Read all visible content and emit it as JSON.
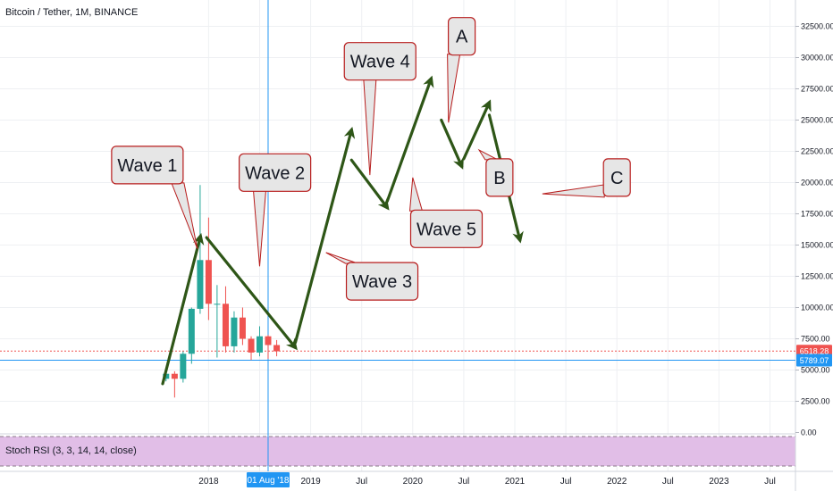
{
  "header": {
    "title": "Bitcoin / Tether, 1M, BINANCE"
  },
  "indicator": {
    "label": "Stoch RSI (3, 3, 14, 14, close)"
  },
  "colors": {
    "up": "#26a69a",
    "down": "#ef5350",
    "arrow": "#2e5617",
    "crosshair": "#2196f3",
    "price_tag": "#ef5350",
    "cross_tag": "#2196f3",
    "rsi_band": "#e1bee7",
    "box_fill": "#e6e6e6",
    "box_border": "#b71c1c"
  },
  "chart_data": {
    "type": "candlestick",
    "title": "Bitcoin / Tether, 1M, BINANCE",
    "ylim": [
      0,
      34500
    ],
    "y_ticks": [
      0,
      2500,
      5000,
      7500,
      10000,
      12500,
      15000,
      17500,
      20000,
      22500,
      25000,
      27500,
      30000,
      32500
    ],
    "y_tick_labels": [
      "0.00",
      "2500.00",
      "5000.00",
      "7500.00",
      "10000.00",
      "12500.00",
      "15000.00",
      "17500.00",
      "20000.00",
      "22500.00",
      "25000.00",
      "27500.00",
      "30000.00",
      "32500.00"
    ],
    "x_ticks": [
      {
        "label": "2018",
        "t": 2018.0
      },
      {
        "label": "Jul",
        "t": 2018.5
      },
      {
        "label": "2019",
        "t": 2019.0
      },
      {
        "label": "Jul",
        "t": 2019.5
      },
      {
        "label": "2020",
        "t": 2020.0
      },
      {
        "label": "Jul",
        "t": 2020.5
      },
      {
        "label": "2021",
        "t": 2021.0
      },
      {
        "label": "Jul",
        "t": 2021.5
      },
      {
        "label": "2022",
        "t": 2022.0
      },
      {
        "label": "Jul",
        "t": 2022.5
      },
      {
        "label": "2023",
        "t": 2023.0
      },
      {
        "label": "Jul",
        "t": 2023.5
      }
    ],
    "x_range": [
      2016.0,
      2023.97
    ],
    "candles": [
      {
        "t": 2017.583,
        "o": 4300,
        "h": 4800,
        "l": 4100,
        "c": 4700
      },
      {
        "t": 2017.667,
        "o": 4700,
        "h": 4900,
        "l": 2800,
        "c": 4300
      },
      {
        "t": 2017.75,
        "o": 4300,
        "h": 6500,
        "l": 4000,
        "c": 6300
      },
      {
        "t": 2017.833,
        "o": 6300,
        "h": 10000,
        "l": 5500,
        "c": 9900
      },
      {
        "t": 2017.917,
        "o": 9900,
        "h": 19800,
        "l": 9500,
        "c": 13800
      },
      {
        "t": 2018.0,
        "o": 13800,
        "h": 17200,
        "l": 9000,
        "c": 10300
      },
      {
        "t": 2018.083,
        "o": 10300,
        "h": 11800,
        "l": 6000,
        "c": 10300
      },
      {
        "t": 2018.167,
        "o": 10300,
        "h": 11700,
        "l": 6400,
        "c": 6900
      },
      {
        "t": 2018.25,
        "o": 6900,
        "h": 9700,
        "l": 6400,
        "c": 9200
      },
      {
        "t": 2018.333,
        "o": 9200,
        "h": 10000,
        "l": 7000,
        "c": 7500
      },
      {
        "t": 2018.417,
        "o": 7500,
        "h": 7700,
        "l": 5800,
        "c": 6400
      },
      {
        "t": 2018.5,
        "o": 6400,
        "h": 8500,
        "l": 6100,
        "c": 7700
      },
      {
        "t": 2018.583,
        "o": 7700,
        "h": 7800,
        "l": 5900,
        "c": 7000
      },
      {
        "t": 2018.667,
        "o": 7000,
        "h": 7400,
        "l": 6100,
        "c": 6500
      }
    ],
    "price_lines": [
      {
        "label": "6518.28",
        "value": 6518.28,
        "style": "dotted"
      },
      {
        "label": "5789.07",
        "value": 5789.07,
        "style": "solid"
      }
    ],
    "crosshair": {
      "label": "01 Aug '18",
      "t": 2018.583
    },
    "arrows": [
      [
        2017.55,
        3900,
        2017.92,
        15700
      ],
      [
        2017.98,
        15600,
        2018.85,
        6800
      ],
      [
        2018.85,
        7200,
        2019.4,
        24200
      ],
      [
        2019.4,
        21800,
        2019.75,
        18000
      ],
      [
        2019.75,
        18500,
        2020.18,
        28300
      ],
      [
        2020.28,
        25000,
        2020.48,
        21300
      ],
      [
        2020.5,
        21900,
        2020.75,
        26400
      ],
      [
        2020.75,
        25400,
        2021.05,
        15400
      ]
    ],
    "callouts": [
      {
        "text": "Wave 1",
        "t": 2017.4,
        "v": 21400,
        "pt": 2017.89,
        "pv": 14700
      },
      {
        "text": "Wave 2",
        "t": 2018.65,
        "v": 20800,
        "pt": 2018.5,
        "pv": 13300
      },
      {
        "text": "Wave 3",
        "t": 2019.7,
        "v": 12100,
        "pt": 2019.15,
        "pv": 14400
      },
      {
        "text": "Wave 4",
        "t": 2019.68,
        "v": 29700,
        "pt": 2019.58,
        "pv": 20600
      },
      {
        "text": "Wave 5",
        "t": 2020.33,
        "v": 16300,
        "pt": 2020.0,
        "pv": 20400
      },
      {
        "text": "A",
        "t": 2020.48,
        "v": 31700,
        "pt": 2020.35,
        "pv": 24800
      },
      {
        "text": "B",
        "t": 2020.85,
        "v": 20400,
        "pt": 2020.65,
        "pv": 22600
      },
      {
        "text": "C",
        "t": 2022.0,
        "v": 20400,
        "pt": 2021.27,
        "pv": 19100
      }
    ]
  }
}
